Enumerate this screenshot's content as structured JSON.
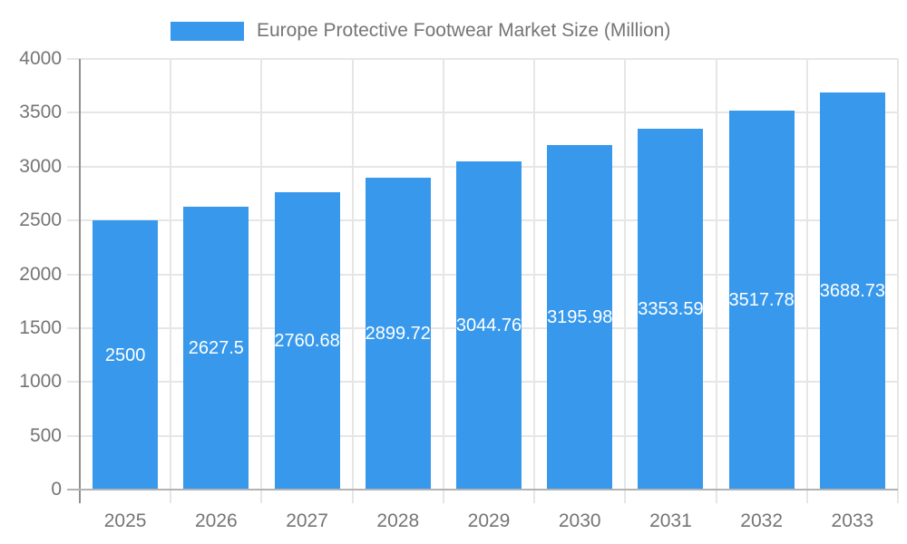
{
  "chart_data": {
    "type": "bar",
    "title": "Europe Protective Footwear Market Size (Million)",
    "legend": {
      "position": "top",
      "entries": [
        "Europe Protective Footwear Market Size (Million)"
      ]
    },
    "categories": [
      "2025",
      "2026",
      "2027",
      "2028",
      "2029",
      "2030",
      "2031",
      "2032",
      "2033"
    ],
    "series": [
      {
        "name": "Europe Protective Footwear Market Size (Million)",
        "values": [
          2500,
          2627.5,
          2760.68,
          2899.72,
          3044.76,
          3195.98,
          3353.59,
          3517.78,
          3688.73
        ]
      }
    ],
    "value_labels": [
      "2500",
      "2627.5",
      "2760.68",
      "2899.72",
      "3044.76",
      "3195.98",
      "3353.59",
      "3517.78",
      "3688.73"
    ],
    "value_label_position": "inside-middle",
    "xlabel": "",
    "ylabel": "",
    "ylim": [
      0,
      4000
    ],
    "ytick_step": 500,
    "ytick_labels": [
      "0",
      "500",
      "1000",
      "1500",
      "2000",
      "2500",
      "3000",
      "3500",
      "4000"
    ],
    "grid": true,
    "colors": {
      "bar": "#3899ec",
      "grid": "#e6e6e6",
      "axis_y": "#8f8f8f",
      "axis_x": "#b3b3b3",
      "text": "#757575",
      "value_label": "#ffffff",
      "background": "#ffffff"
    }
  }
}
